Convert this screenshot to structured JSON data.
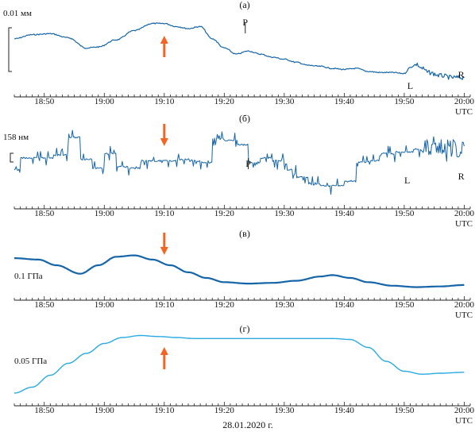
{
  "figure": {
    "date_label": "28.01.2020 г.",
    "x_ticks": [
      "18:50",
      "19:00",
      "19:10",
      "19:20",
      "19:30",
      "19:40",
      "19:50",
      "20:00"
    ],
    "x_unit": "UTC",
    "colors": {
      "dark_blue": "#1565a8",
      "light_blue": "#2aaae2",
      "arrow": "#f26522"
    }
  },
  "chart_data": [
    {
      "type": "line",
      "panel_label": "(а)",
      "scale_label": "0.01 мм",
      "x_range": [
        "18:45",
        "20:01"
      ],
      "marker_labels": [
        {
          "text": "P",
          "time": "19:23.5"
        },
        {
          "text": "L",
          "time": "19:51"
        },
        {
          "text": "R",
          "time": "19:59.5"
        }
      ],
      "arrow": {
        "time": "19:10",
        "direction": "up"
      },
      "series": [
        {
          "color": "#1565a8",
          "x": [
            "18:45",
            "18:48",
            "18:51",
            "18:54",
            "18:57",
            "18:59",
            "19:02",
            "19:05",
            "19:08",
            "19:10",
            "19:12",
            "19:14",
            "19:16",
            "19:18",
            "19:20",
            "19:22",
            "19:24",
            "19:26",
            "19:28",
            "19:30",
            "19:32",
            "19:34",
            "19:36",
            "19:38",
            "19:40",
            "19:42",
            "19:44",
            "19:46",
            "19:48",
            "19:50",
            "19:51",
            "19:52",
            "19:53",
            "19:54",
            "19:56",
            "19:58",
            "20:00"
          ],
          "y": [
            0.6,
            1.0,
            1.1,
            0.7,
            -0.3,
            -0.2,
            0.5,
            1.4,
            2.1,
            2.1,
            1.8,
            1.6,
            1.8,
            0.6,
            -0.3,
            -0.9,
            -0.6,
            -0.9,
            -1.2,
            -1.4,
            -1.7,
            -2.0,
            -2.1,
            -2.3,
            -2.4,
            -2.3,
            -2.6,
            -2.7,
            -2.7,
            -2.8,
            -2.2,
            -1.9,
            -2.3,
            -2.7,
            -3.0,
            -3.2,
            -3.2
          ]
        }
      ]
    },
    {
      "type": "line",
      "panel_label": "(б)",
      "scale_label": "158 нм",
      "x_range": [
        "18:45",
        "20:01"
      ],
      "marker_labels": [
        {
          "text": "P",
          "time": "19:24"
        },
        {
          "text": "L",
          "time": "19:50.5"
        },
        {
          "text": "R",
          "time": "19:59.5"
        }
      ],
      "arrow": {
        "time": "19:10",
        "direction": "down"
      },
      "series": [
        {
          "color": "#1565a8",
          "x": [
            "18:45",
            "18:47",
            "18:50",
            "18:53",
            "18:55",
            "18:57",
            "18:59",
            "19:01",
            "19:03",
            "19:05",
            "19:07",
            "19:09",
            "19:11",
            "19:13",
            "19:15",
            "19:17",
            "19:19",
            "19:21",
            "19:23",
            "19:25",
            "19:27",
            "19:29",
            "19:31",
            "19:33",
            "19:35",
            "19:37",
            "19:39",
            "19:41",
            "19:43",
            "19:45",
            "19:47",
            "19:50",
            "19:53",
            "19:56",
            "19:58",
            "20:00"
          ],
          "y": [
            -0.5,
            0.3,
            0.3,
            0.5,
            1.7,
            0.2,
            -0.4,
            0.6,
            -0.3,
            -0.4,
            0.1,
            0.1,
            0.1,
            0.2,
            0.1,
            0.0,
            1.6,
            1.5,
            1.2,
            0.0,
            0.3,
            0.1,
            -0.5,
            -1.0,
            -1.5,
            -1.6,
            -1.6,
            -1.3,
            0.0,
            0.1,
            0.6,
            0.7,
            0.9,
            1.2,
            1.0,
            1.1
          ]
        }
      ]
    },
    {
      "type": "line",
      "panel_label": "(в)",
      "scale_label": "0.1 ГПа",
      "x_range": [
        "18:45",
        "20:01"
      ],
      "arrow": {
        "time": "19:10",
        "direction": "down"
      },
      "series": [
        {
          "color": "#1565a8",
          "x": [
            "18:45",
            "18:49",
            "18:52",
            "18:56",
            "18:59",
            "19:02",
            "19:05",
            "19:08",
            "19:11",
            "19:14",
            "19:17",
            "19:20",
            "19:24",
            "19:28",
            "19:32",
            "19:36",
            "19:38",
            "19:41",
            "19:44",
            "19:48",
            "19:52",
            "19:56",
            "20:00"
          ],
          "y": [
            1.3,
            1.2,
            0.8,
            0.2,
            0.8,
            1.4,
            1.5,
            1.2,
            0.8,
            0.3,
            -0.1,
            -0.4,
            -0.5,
            -0.45,
            -0.3,
            0.0,
            0.1,
            -0.1,
            -0.4,
            -0.65,
            -0.75,
            -0.7,
            -0.6
          ]
        }
      ]
    },
    {
      "type": "line",
      "panel_label": "(г)",
      "scale_label": "0.05 ГПа",
      "x_range": [
        "18:45",
        "20:01"
      ],
      "arrow": {
        "time": "19:10",
        "direction": "up"
      },
      "series": [
        {
          "color": "#2aaae2",
          "x": [
            "18:45",
            "18:48",
            "18:51",
            "18:54",
            "18:57",
            "19:00",
            "19:03",
            "19:06",
            "19:09",
            "19:12",
            "19:15",
            "19:20",
            "19:25",
            "19:30",
            "19:35",
            "19:38",
            "19:41",
            "19:44",
            "19:47",
            "19:50",
            "19:53",
            "19:56",
            "20:00"
          ],
          "y": [
            -1.4,
            -1.1,
            -0.5,
            0.1,
            0.6,
            1.1,
            1.4,
            1.5,
            1.45,
            1.4,
            1.35,
            1.35,
            1.35,
            1.35,
            1.35,
            1.35,
            1.3,
            0.9,
            0.2,
            -0.3,
            -0.45,
            -0.4,
            -0.35
          ]
        }
      ]
    }
  ]
}
